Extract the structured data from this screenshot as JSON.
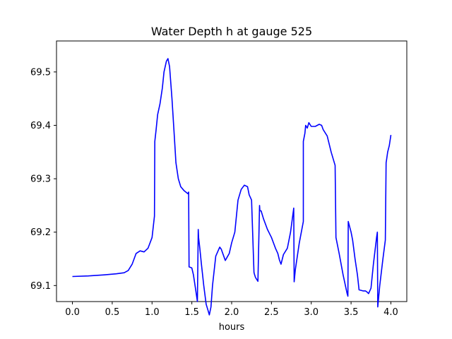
{
  "chart_data": {
    "type": "line",
    "title": "Water Depth h at gauge 525",
    "xlabel": "hours",
    "ylabel": "",
    "xlim": [
      -0.2,
      4.2
    ],
    "ylim": [
      69.07,
      69.558
    ],
    "xticks": [
      0.0,
      0.5,
      1.0,
      1.5,
      2.0,
      2.5,
      3.0,
      3.5,
      4.0
    ],
    "xtick_labels": [
      "0.0",
      "0.5",
      "1.0",
      "1.5",
      "2.0",
      "2.5",
      "3.0",
      "3.5",
      "4.0"
    ],
    "yticks": [
      69.1,
      69.2,
      69.3,
      69.4,
      69.5
    ],
    "ytick_labels": [
      "69.1",
      "69.2",
      "69.3",
      "69.4",
      "69.5"
    ],
    "grid": false,
    "series_color": "#0000ff",
    "series": [
      {
        "x": [
          0.0,
          0.2,
          0.4,
          0.55,
          0.65,
          0.7,
          0.75,
          0.8,
          0.85,
          0.9,
          0.95,
          1.0,
          1.03,
          1.035,
          1.05,
          1.07,
          1.1,
          1.13,
          1.15,
          1.18,
          1.2,
          1.22,
          1.25,
          1.28,
          1.3,
          1.33,
          1.36,
          1.4,
          1.45,
          1.46,
          1.465,
          1.5,
          1.52,
          1.55,
          1.57,
          1.58,
          1.585,
          1.6,
          1.62,
          1.65,
          1.68,
          1.7,
          1.72,
          1.74,
          1.76,
          1.8,
          1.85,
          1.87,
          1.92,
          1.97,
          2.0,
          2.04,
          2.08,
          2.12,
          2.16,
          2.2,
          2.22,
          2.25,
          2.28,
          2.285,
          2.3,
          2.33,
          2.35,
          2.355,
          2.37,
          2.4,
          2.45,
          2.5,
          2.55,
          2.58,
          2.6,
          2.62,
          2.65,
          2.7,
          2.74,
          2.78,
          2.785,
          2.8,
          2.85,
          2.9,
          2.9,
          2.92,
          2.93,
          2.95,
          2.97,
          3.0,
          3.05,
          3.1,
          3.13,
          3.15,
          3.2,
          3.25,
          3.3,
          3.31,
          3.35,
          3.4,
          3.45,
          3.46,
          3.465,
          3.5,
          3.52,
          3.55,
          3.58,
          3.6,
          3.65,
          3.68,
          3.7,
          3.72,
          3.75,
          3.78,
          3.82,
          3.83,
          3.835,
          3.86,
          3.9,
          3.93,
          3.94,
          3.945,
          3.96,
          3.98,
          4.0
        ],
        "values": [
          69.117,
          69.118,
          69.12,
          69.122,
          69.124,
          69.128,
          69.14,
          69.16,
          69.165,
          69.163,
          69.17,
          69.19,
          69.23,
          69.37,
          69.39,
          69.42,
          69.44,
          69.47,
          69.5,
          69.52,
          69.525,
          69.51,
          69.45,
          69.38,
          69.33,
          69.3,
          69.285,
          69.278,
          69.272,
          69.275,
          69.135,
          69.133,
          69.12,
          69.09,
          69.07,
          69.205,
          69.19,
          69.17,
          69.14,
          69.1,
          69.065,
          69.055,
          69.045,
          69.06,
          69.1,
          69.155,
          69.172,
          69.168,
          69.147,
          69.16,
          69.18,
          69.2,
          69.26,
          69.28,
          69.288,
          69.285,
          69.27,
          69.26,
          69.125,
          69.122,
          69.115,
          69.108,
          69.25,
          69.24,
          69.24,
          69.225,
          69.205,
          69.19,
          69.17,
          69.16,
          69.148,
          69.14,
          69.158,
          69.17,
          69.2,
          69.245,
          69.107,
          69.13,
          69.18,
          69.22,
          69.37,
          69.385,
          69.4,
          69.395,
          69.405,
          69.398,
          69.398,
          69.402,
          69.4,
          69.392,
          69.38,
          69.35,
          69.325,
          69.19,
          69.16,
          69.12,
          69.085,
          69.08,
          69.22,
          69.2,
          69.185,
          69.15,
          69.12,
          69.092,
          69.09,
          69.09,
          69.088,
          69.085,
          69.095,
          69.14,
          69.19,
          69.2,
          69.06,
          69.1,
          69.15,
          69.185,
          69.33,
          69.335,
          69.35,
          69.362,
          69.382
        ]
      }
    ]
  }
}
